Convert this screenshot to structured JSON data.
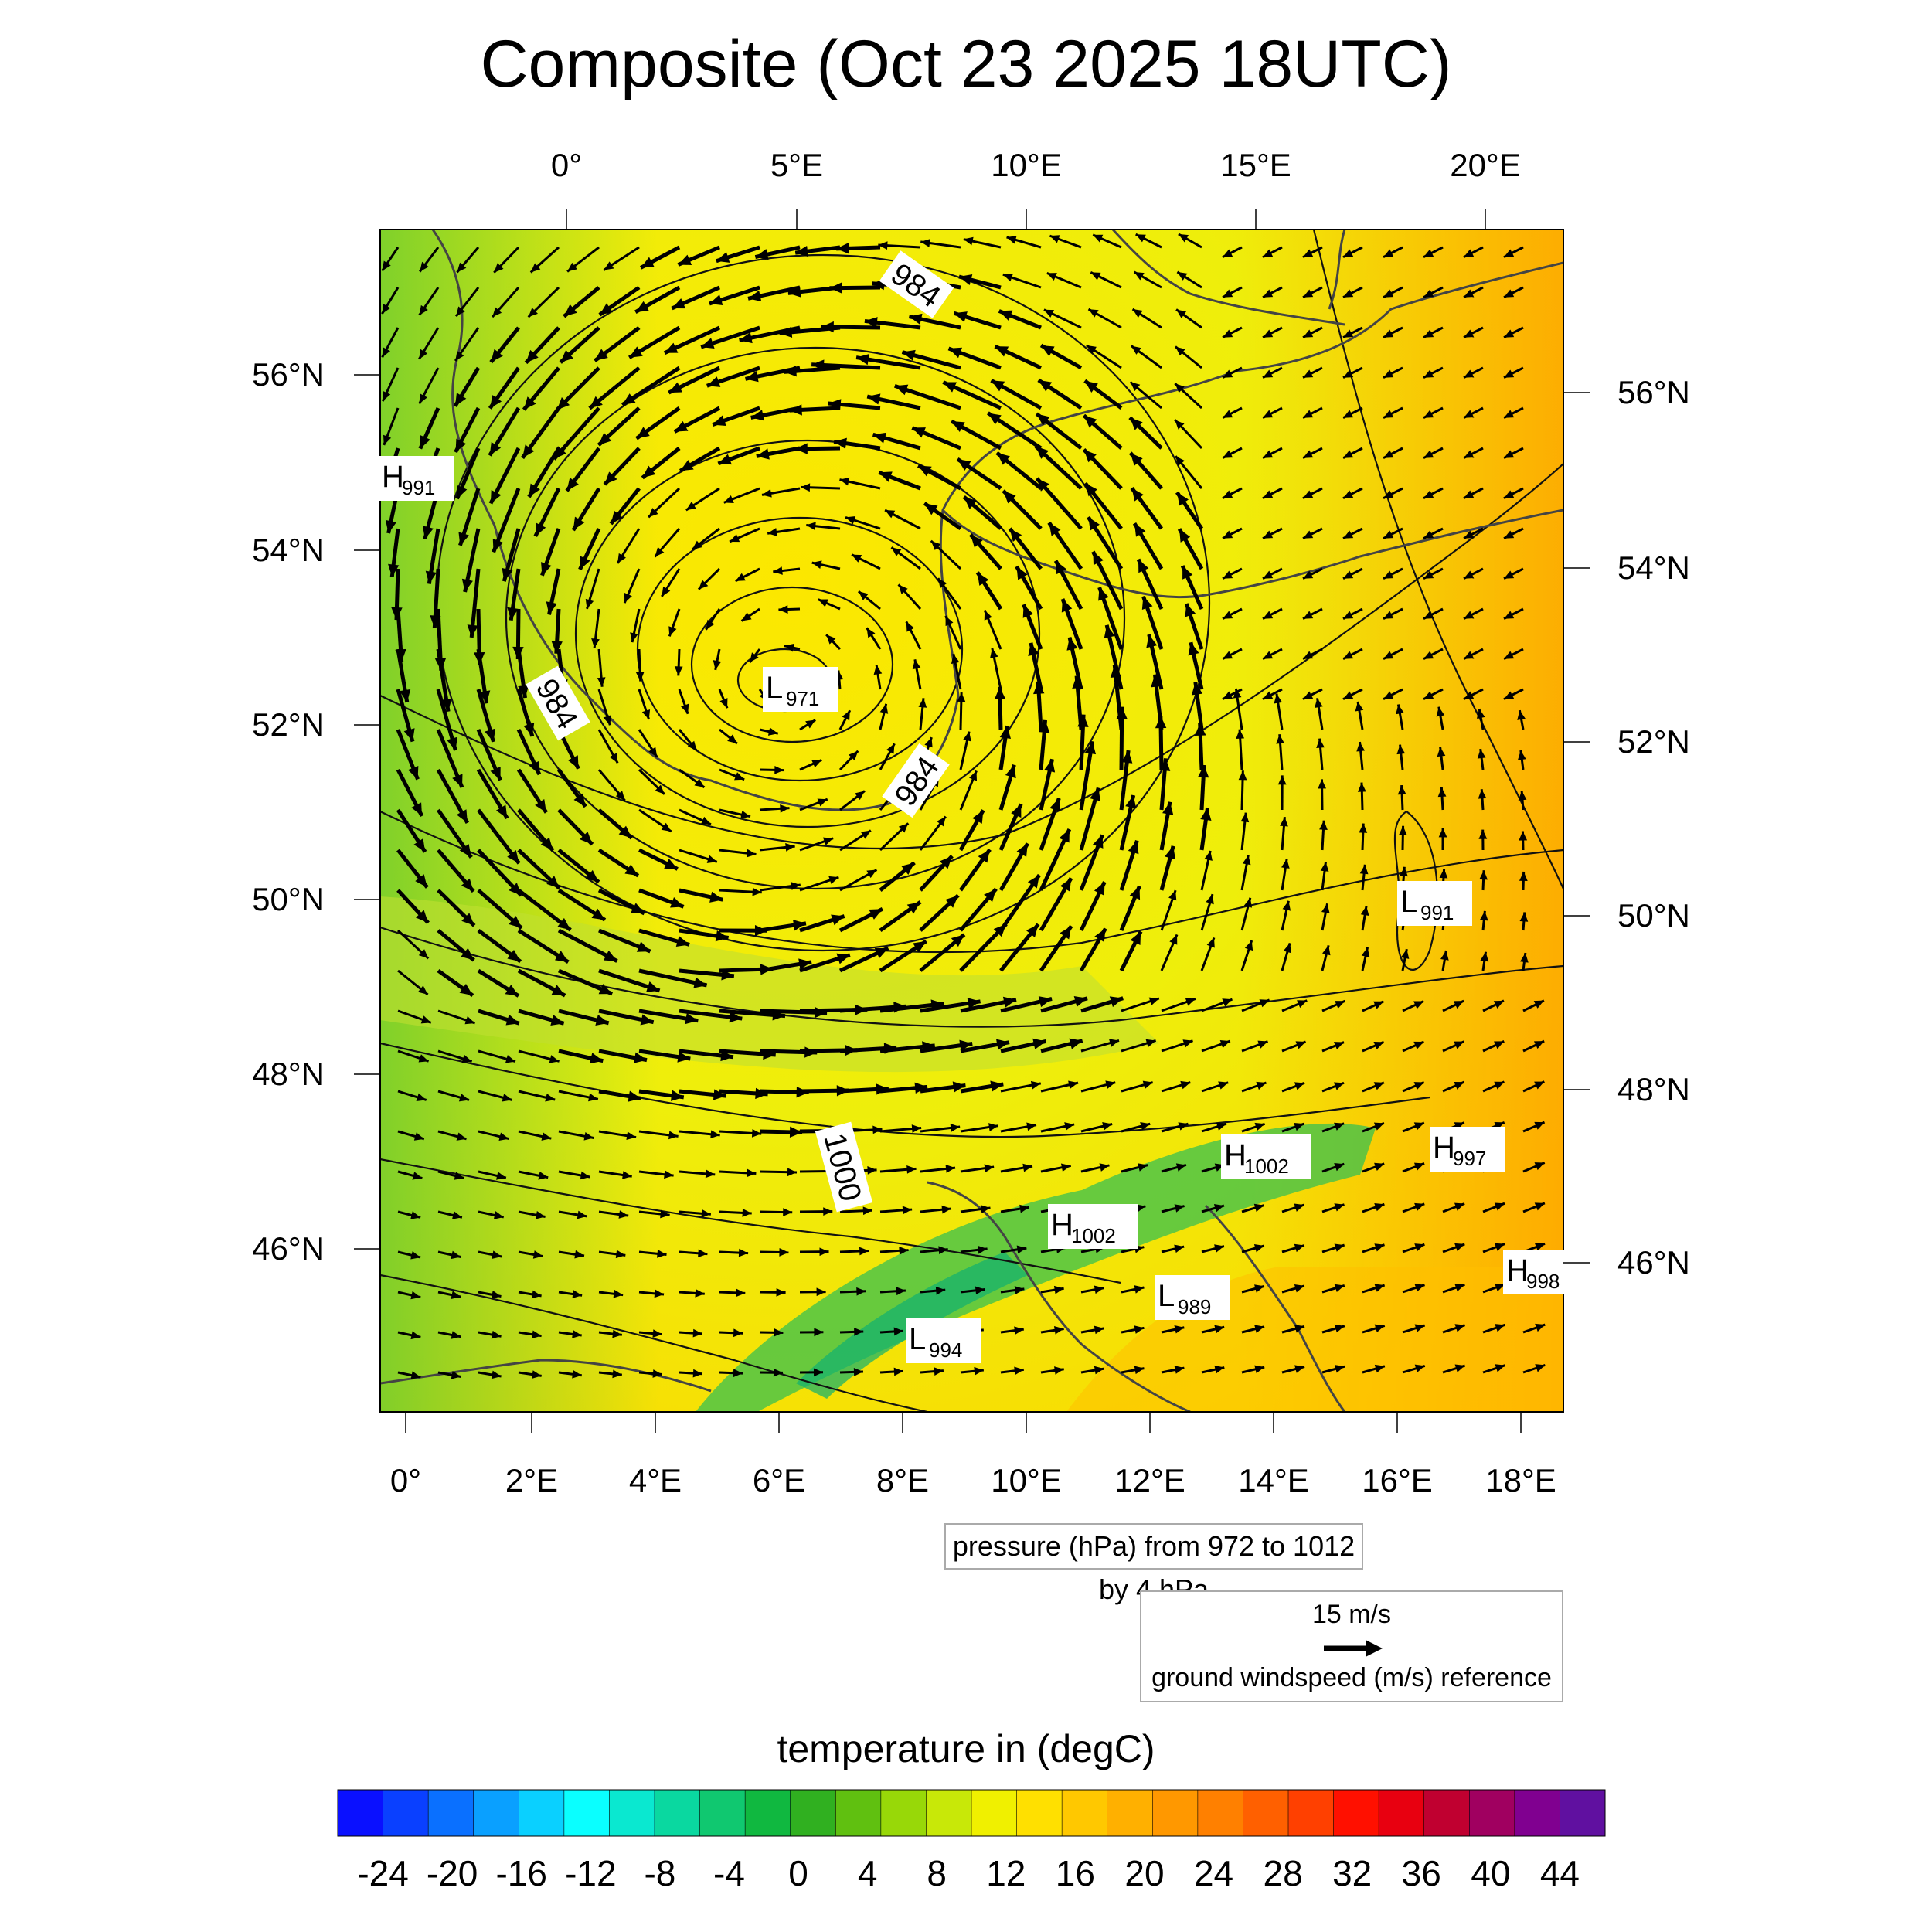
{
  "title": "Composite (Oct 23 2025 18UTC)",
  "map": {
    "top_lon_labels": [
      "0°",
      "5°E",
      "10°E",
      "15°E",
      "20°E"
    ],
    "bottom_lon_labels": [
      "0°",
      "2°E",
      "4°E",
      "6°E",
      "8°E",
      "10°E",
      "12°E",
      "14°E",
      "16°E",
      "18°E"
    ],
    "left_lat_labels": [
      "56°N",
      "54°N",
      "52°N",
      "50°N",
      "48°N",
      "46°N"
    ],
    "right_lat_labels": [
      "56°N",
      "54°N",
      "52°N",
      "50°N",
      "48°N",
      "46°N"
    ],
    "contour_labels": [
      "984",
      "984",
      "984",
      "1000"
    ],
    "pressure_centers": [
      {
        "letter": "H",
        "value": "991"
      },
      {
        "letter": "L",
        "value": "971"
      },
      {
        "letter": "L",
        "value": "991"
      },
      {
        "letter": "H",
        "value": "1002"
      },
      {
        "letter": "H",
        "value": "997"
      },
      {
        "letter": "H",
        "value": "1002"
      },
      {
        "letter": "H",
        "value": "998"
      },
      {
        "letter": "L",
        "value": "989"
      },
      {
        "letter": "L",
        "value": "994"
      }
    ],
    "colors": {
      "land_temp_low": "#5cc83c",
      "land_temp_mid": "#d8ea10",
      "land_temp_high": "#ffd000",
      "coast": "#444444"
    }
  },
  "pressure_info": "pressure (hPa) from 972 to 1012 by 4 hPa",
  "wind_reference": {
    "speed": "15 m/s",
    "label": "ground windspeed (m/s) reference"
  },
  "colorbar": {
    "title": "temperature in (degC)",
    "tick_labels": [
      "-24",
      "-20",
      "-16",
      "-12",
      "-8",
      "-4",
      "0",
      "4",
      "8",
      "12",
      "16",
      "20",
      "24",
      "28",
      "32",
      "36",
      "40",
      "44"
    ],
    "colors": [
      "#0a10ff",
      "#0a40ff",
      "#0a70ff",
      "#0aa0ff",
      "#0ad0ff",
      "#0affff",
      "#0ae8d0",
      "#0ad8a0",
      "#10c870",
      "#10b840",
      "#30b020",
      "#60c010",
      "#98d808",
      "#c8e808",
      "#f0f000",
      "#ffe000",
      "#ffc800",
      "#ffb000",
      "#ff9800",
      "#ff8000",
      "#ff6000",
      "#ff4000",
      "#ff1000",
      "#e80010",
      "#c00030",
      "#a00060",
      "#800090",
      "#6010a0"
    ]
  }
}
